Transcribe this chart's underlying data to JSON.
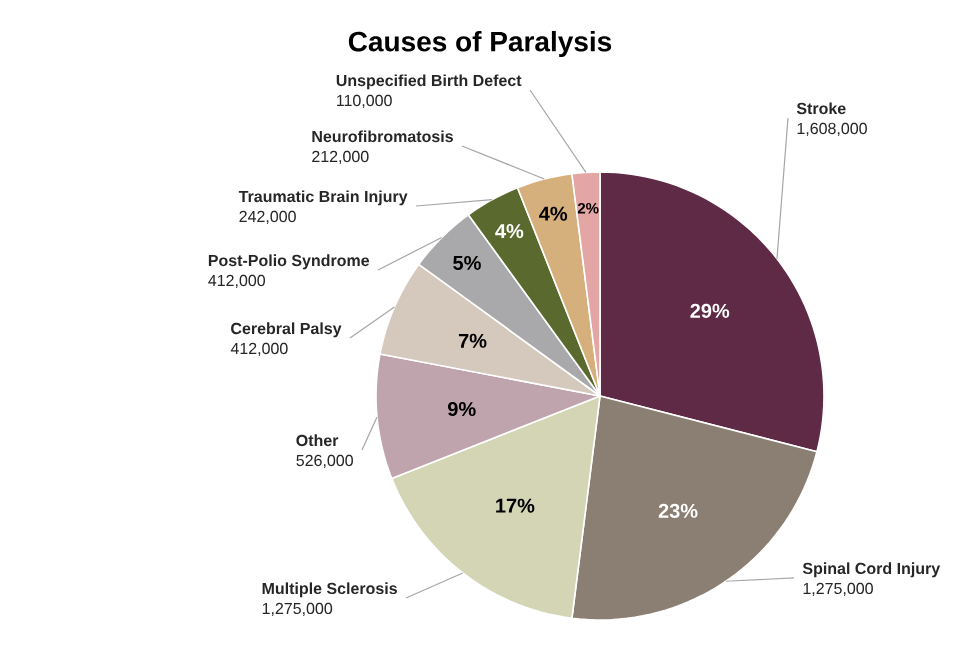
{
  "chart_data": {
    "type": "pie",
    "title": "Causes of Paralysis",
    "categories": [
      "Stroke",
      "Spinal Cord Injury",
      "Multiple Sclerosis",
      "Other",
      "Cerebral Palsy",
      "Post-Polio Syndrome",
      "Traumatic Brain Injury",
      "Neurofibromatosis",
      "Unspecified Birth Defect"
    ],
    "values": [
      29,
      23,
      17,
      9,
      7,
      5,
      4,
      4,
      2
    ],
    "value_labels": [
      "29%",
      "23%",
      "17%",
      "9%",
      "7%",
      "5%",
      "4%",
      "4%",
      "2%"
    ],
    "colors": [
      "#5e2a45",
      "#8a7f72",
      "#d3d5b5",
      "#bfa4ad",
      "#d5c8bd",
      "#a9a9ab",
      "#5a6a2e",
      "#d6b07c",
      "#e3a6a5"
    ],
    "annotations": [
      "1,608,000",
      "1,275,000",
      "1,275,000",
      "526,000",
      "412,000",
      "412,000",
      "242,000",
      "212,000",
      "110,000"
    ]
  }
}
